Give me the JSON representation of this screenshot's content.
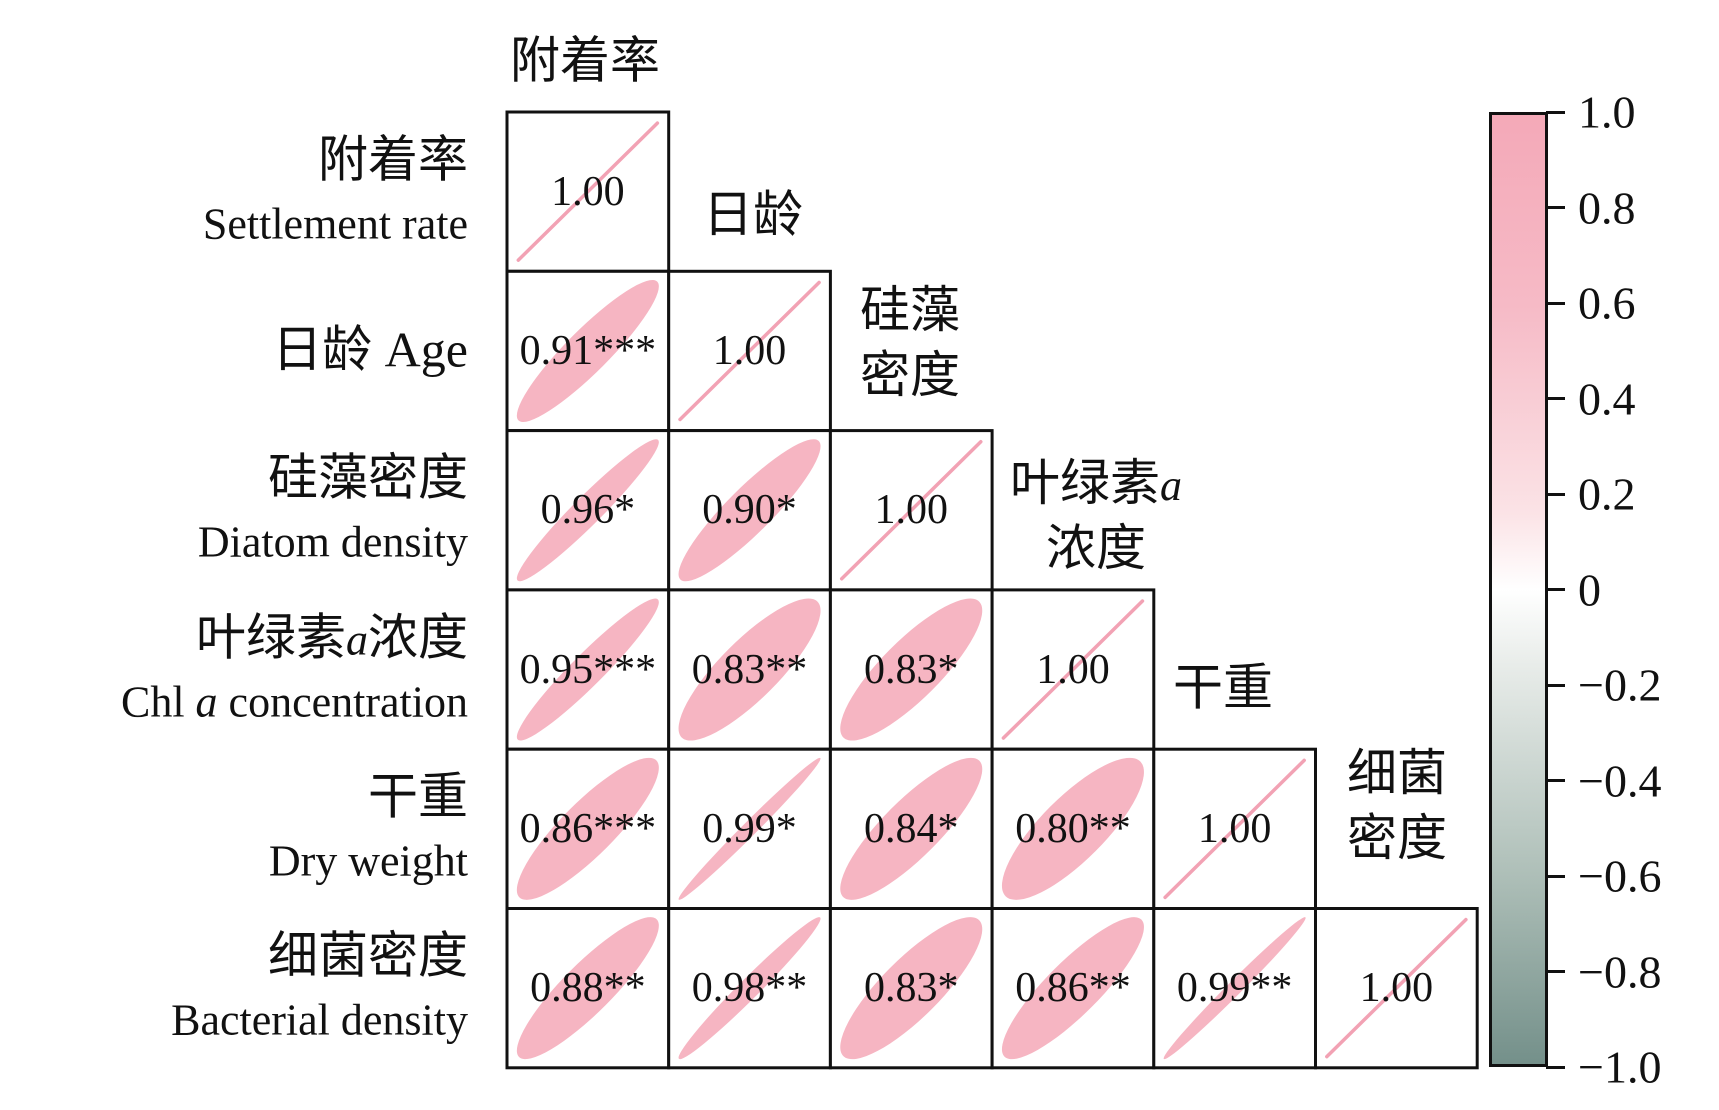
{
  "figure": {
    "kind": "correlation ellipse matrix",
    "background": "#ffffff"
  },
  "chart_data": {
    "type": "heatmap",
    "subtype": "lower-triangle correlation ellipse matrix",
    "title": "",
    "variables": [
      {
        "zh": "附着率",
        "en": "Settlement rate"
      },
      {
        "zh": "日龄",
        "en": "Age"
      },
      {
        "zh": "硅藻密度",
        "en": "Diatom density"
      },
      {
        "zh": "叶绿素a浓度",
        "en": "Chl a concentration"
      },
      {
        "zh": "干重",
        "en": "Dry weight"
      },
      {
        "zh": "细菌密度",
        "en": "Bacterial density"
      }
    ],
    "row_labels": [
      {
        "lines": [
          [
            {
              "t": "附着率"
            }
          ],
          [
            {
              "t": "Settlement rate"
            }
          ]
        ]
      },
      {
        "lines": [
          [
            {
              "t": "日龄 Age"
            }
          ]
        ]
      },
      {
        "lines": [
          [
            {
              "t": "硅藻密度"
            }
          ],
          [
            {
              "t": "Diatom density"
            }
          ]
        ]
      },
      {
        "lines": [
          [
            {
              "t": "叶绿素"
            },
            {
              "t": "a",
              "i": 1
            },
            {
              "t": "浓度"
            }
          ],
          [
            {
              "t": "Chl "
            },
            {
              "t": "a",
              "i": 1
            },
            {
              "t": " concentration"
            }
          ]
        ]
      },
      {
        "lines": [
          [
            {
              "t": "干重"
            }
          ],
          [
            {
              "t": "Dry weight"
            }
          ]
        ]
      },
      {
        "lines": [
          [
            {
              "t": "细菌密度"
            }
          ],
          [
            {
              "t": "Bacterial density"
            }
          ]
        ]
      }
    ],
    "diagonal_labels": [
      {
        "lines": [
          [
            {
              "t": "附着率"
            }
          ]
        ]
      },
      {
        "lines": [
          [
            {
              "t": "日龄"
            }
          ]
        ]
      },
      {
        "lines": [
          [
            {
              "t": "硅藻"
            }
          ],
          [
            {
              "t": "密度"
            }
          ]
        ]
      },
      {
        "lines": [
          [
            {
              "t": "叶绿素"
            },
            {
              "t": "a",
              "i": 1
            }
          ],
          [
            {
              "t": "浓度"
            }
          ]
        ]
      },
      {
        "lines": [
          [
            {
              "t": "干重"
            }
          ]
        ]
      },
      {
        "lines": [
          [
            {
              "t": "细菌"
            }
          ],
          [
            {
              "t": "密度"
            }
          ]
        ]
      }
    ],
    "cells": [
      {
        "row": 0,
        "col": 0,
        "r": 1.0,
        "label": "1.00"
      },
      {
        "row": 1,
        "col": 0,
        "r": 0.91,
        "label": "0.91***"
      },
      {
        "row": 1,
        "col": 1,
        "r": 1.0,
        "label": "1.00"
      },
      {
        "row": 2,
        "col": 0,
        "r": 0.96,
        "label": "0.96*"
      },
      {
        "row": 2,
        "col": 1,
        "r": 0.9,
        "label": "0.90*"
      },
      {
        "row": 2,
        "col": 2,
        "r": 1.0,
        "label": "1.00"
      },
      {
        "row": 3,
        "col": 0,
        "r": 0.95,
        "label": "0.95***"
      },
      {
        "row": 3,
        "col": 1,
        "r": 0.83,
        "label": "0.83**"
      },
      {
        "row": 3,
        "col": 2,
        "r": 0.83,
        "label": "0.83*"
      },
      {
        "row": 3,
        "col": 3,
        "r": 1.0,
        "label": "1.00"
      },
      {
        "row": 4,
        "col": 0,
        "r": 0.86,
        "label": "0.86***"
      },
      {
        "row": 4,
        "col": 1,
        "r": 0.99,
        "label": "0.99*"
      },
      {
        "row": 4,
        "col": 2,
        "r": 0.84,
        "label": "0.84*"
      },
      {
        "row": 4,
        "col": 3,
        "r": 0.8,
        "label": "0.80**"
      },
      {
        "row": 4,
        "col": 4,
        "r": 1.0,
        "label": "1.00"
      },
      {
        "row": 5,
        "col": 0,
        "r": 0.88,
        "label": "0.88**"
      },
      {
        "row": 5,
        "col": 1,
        "r": 0.98,
        "label": "0.98**"
      },
      {
        "row": 5,
        "col": 2,
        "r": 0.83,
        "label": "0.83*"
      },
      {
        "row": 5,
        "col": 3,
        "r": 0.86,
        "label": "0.86**"
      },
      {
        "row": 5,
        "col": 4,
        "r": 0.99,
        "label": "0.99**"
      },
      {
        "row": 5,
        "col": 5,
        "r": 1.0,
        "label": "1.00"
      }
    ],
    "colorbar": {
      "position": "right",
      "min": -1.0,
      "max": 1.0,
      "tick_labels": [
        "1.0",
        "0.8",
        "0.6",
        "0.4",
        "0.2",
        "0",
        "−0.2",
        "−0.4",
        "−0.6",
        "−0.8",
        "−1.0"
      ],
      "top_color": "#f4a9b8",
      "mid_color": "#ffffff",
      "bottom_color": "#74908a"
    },
    "colors": {
      "ellipse_fill": "#f6b5c2",
      "perfect_line": "#f2a2b4",
      "grid_border": "#111111",
      "text": "#111111"
    },
    "legend_position": "none",
    "grid": "cell borders on"
  }
}
